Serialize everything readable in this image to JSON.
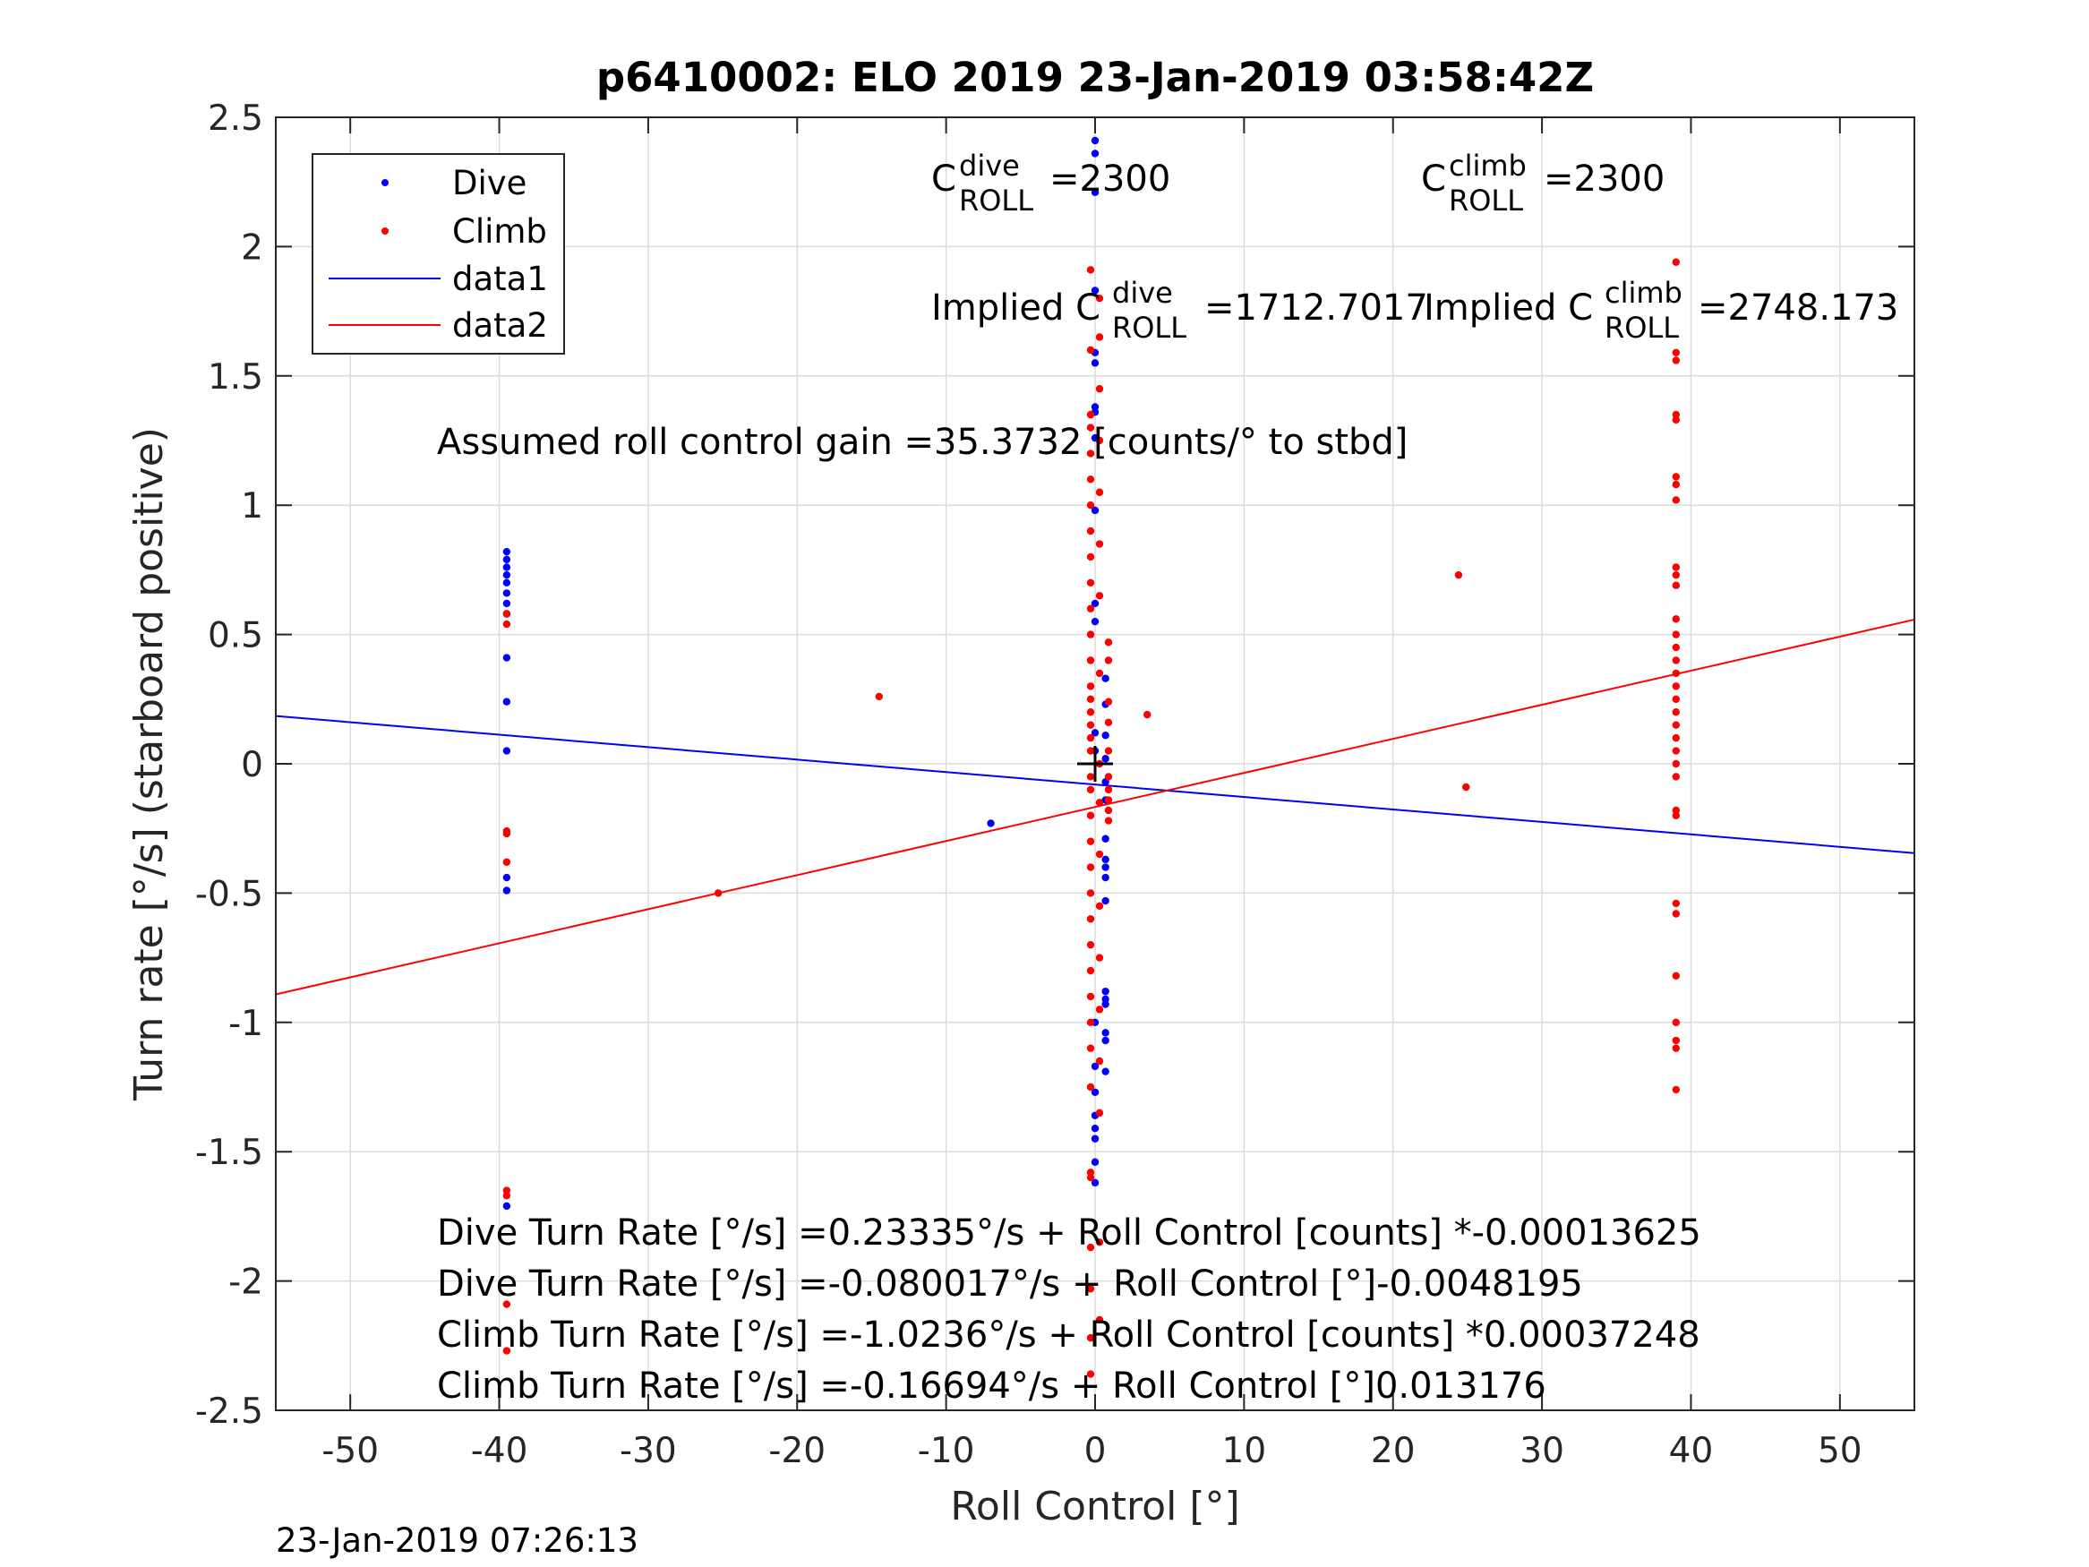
{
  "chart_data": {
    "type": "scatter",
    "title": "p6410002: ELO 2019 23-Jan-2019 03:58:42Z",
    "xlabel": "Roll Control [°]",
    "ylabel": "Turn rate [°/s] (starboard positive)",
    "xlim": [
      -55,
      55
    ],
    "ylim": [
      -2.5,
      2.5
    ],
    "grid": true,
    "legend_placement": "top-left",
    "x_ticks": [
      -50,
      -40,
      -30,
      -20,
      -10,
      0,
      10,
      20,
      30,
      40,
      50
    ],
    "x_tick_labels": [
      "-50",
      "-40",
      "-30",
      "-20",
      "-10",
      "0",
      "10",
      "20",
      "30",
      "40",
      "50"
    ],
    "y_ticks": [
      2.5,
      2,
      1.5,
      1,
      0.5,
      0,
      -0.5,
      -1,
      -1.5,
      -2,
      -2.5
    ],
    "y_tick_labels": [
      "2.5",
      "2",
      "1.5",
      "1",
      "0.5",
      "0",
      "-0.5",
      "-1",
      "-1.5",
      "-2",
      "-2.5"
    ],
    "legend": [
      "Dive",
      "Climb",
      "data1",
      "data2"
    ],
    "series": [
      {
        "name": "Dive",
        "kind": "points",
        "color": "#0000ff",
        "points": [
          [
            -39.5,
            0.82
          ],
          [
            -39.5,
            0.79
          ],
          [
            -39.5,
            0.76
          ],
          [
            -39.5,
            0.73
          ],
          [
            -39.5,
            0.7
          ],
          [
            -39.5,
            0.66
          ],
          [
            -39.5,
            0.62
          ],
          [
            -39.5,
            0.58
          ],
          [
            -39.5,
            0.41
          ],
          [
            -39.5,
            0.24
          ],
          [
            -39.5,
            0.05
          ],
          [
            -39.5,
            -0.44
          ],
          [
            -39.5,
            -0.49
          ],
          [
            -39.5,
            -1.71
          ],
          [
            -7,
            -0.23
          ],
          [
            0,
            2.41
          ],
          [
            0,
            2.36
          ],
          [
            0,
            2.21
          ],
          [
            0,
            1.83
          ],
          [
            0,
            1.59
          ],
          [
            0,
            1.55
          ],
          [
            0,
            1.38
          ],
          [
            0,
            1.36
          ],
          [
            0,
            1.26
          ],
          [
            0,
            0.98
          ],
          [
            0,
            0.62
          ],
          [
            0,
            0.55
          ],
          [
            0,
            0.12
          ],
          [
            0,
            0.05
          ],
          [
            0,
            -1.0
          ],
          [
            0,
            -1.17
          ],
          [
            0,
            -1.27
          ],
          [
            0,
            -1.36
          ],
          [
            0,
            -1.41
          ],
          [
            0,
            -1.45
          ],
          [
            0,
            -1.54
          ],
          [
            0,
            -1.62
          ],
          [
            0.7,
            0.33
          ],
          [
            0.7,
            0.23
          ],
          [
            0.7,
            0.11
          ],
          [
            0.7,
            0.02
          ],
          [
            0.7,
            -0.07
          ],
          [
            0.7,
            -0.14
          ],
          [
            0.7,
            -0.29
          ],
          [
            0.7,
            -0.37
          ],
          [
            0.7,
            -0.4
          ],
          [
            0.7,
            -0.44
          ],
          [
            0.7,
            -0.53
          ],
          [
            0.7,
            -0.88
          ],
          [
            0.7,
            -0.91
          ],
          [
            0.7,
            -0.93
          ],
          [
            0.7,
            -1.04
          ],
          [
            0.7,
            -1.07
          ],
          [
            0.7,
            -1.19
          ]
        ]
      },
      {
        "name": "Climb",
        "kind": "points",
        "color": "#ff0000",
        "points": [
          [
            -39.5,
            0.58
          ],
          [
            -39.5,
            0.54
          ],
          [
            -39.5,
            -0.26
          ],
          [
            -39.5,
            -0.27
          ],
          [
            -39.5,
            -0.38
          ],
          [
            -39.5,
            -1.65
          ],
          [
            -39.5,
            -1.67
          ],
          [
            -39.5,
            -2.09
          ],
          [
            -39.5,
            -2.27
          ],
          [
            -25.3,
            -0.5
          ],
          [
            -14.5,
            0.26
          ],
          [
            3.5,
            0.19
          ],
          [
            24.4,
            0.73
          ],
          [
            24.9,
            -0.09
          ],
          [
            -0.3,
            1.91
          ],
          [
            -0.3,
            1.6
          ],
          [
            -0.3,
            1.35
          ],
          [
            -0.3,
            1.3
          ],
          [
            -0.3,
            1.2
          ],
          [
            -0.3,
            1.1
          ],
          [
            -0.3,
            1.0
          ],
          [
            -0.3,
            0.9
          ],
          [
            -0.3,
            0.8
          ],
          [
            -0.3,
            0.7
          ],
          [
            -0.3,
            0.6
          ],
          [
            -0.3,
            0.5
          ],
          [
            -0.3,
            0.4
          ],
          [
            -0.3,
            0.3
          ],
          [
            -0.3,
            0.25
          ],
          [
            -0.3,
            0.2
          ],
          [
            -0.3,
            0.15
          ],
          [
            -0.3,
            0.1
          ],
          [
            -0.3,
            0.05
          ],
          [
            -0.3,
            -0.05
          ],
          [
            -0.3,
            -0.1
          ],
          [
            -0.3,
            -0.2
          ],
          [
            -0.3,
            -0.3
          ],
          [
            -0.3,
            -0.4
          ],
          [
            -0.3,
            -0.5
          ],
          [
            -0.3,
            -0.6
          ],
          [
            -0.3,
            -0.7
          ],
          [
            -0.3,
            -0.8
          ],
          [
            -0.3,
            -0.9
          ],
          [
            -0.3,
            -1.0
          ],
          [
            -0.3,
            -1.1
          ],
          [
            -0.3,
            -1.25
          ],
          [
            -0.3,
            -1.58
          ],
          [
            -0.3,
            -1.6
          ],
          [
            -0.3,
            -1.87
          ],
          [
            -0.3,
            -2.03
          ],
          [
            -0.3,
            -2.22
          ],
          [
            -0.3,
            -2.36
          ],
          [
            0.3,
            1.8
          ],
          [
            0.3,
            1.65
          ],
          [
            0.3,
            1.45
          ],
          [
            0.3,
            1.25
          ],
          [
            0.3,
            1.05
          ],
          [
            0.3,
            0.85
          ],
          [
            0.3,
            0.65
          ],
          [
            0.3,
            0.35
          ],
          [
            0.3,
            0.0
          ],
          [
            0.3,
            -0.15
          ],
          [
            0.3,
            -0.35
          ],
          [
            0.3,
            -0.55
          ],
          [
            0.3,
            -0.75
          ],
          [
            0.3,
            -0.95
          ],
          [
            0.3,
            -1.15
          ],
          [
            0.3,
            -1.35
          ],
          [
            0.3,
            -1.85
          ],
          [
            0.3,
            -2.15
          ],
          [
            0.9,
            0.47
          ],
          [
            0.9,
            0.4
          ],
          [
            0.9,
            0.24
          ],
          [
            0.9,
            0.16
          ],
          [
            0.9,
            0.05
          ],
          [
            0.9,
            -0.05
          ],
          [
            0.9,
            -0.1
          ],
          [
            0.9,
            -0.14
          ],
          [
            0.9,
            -0.18
          ],
          [
            0.9,
            -0.22
          ],
          [
            39,
            1.94
          ],
          [
            39,
            1.59
          ],
          [
            39,
            1.56
          ],
          [
            39,
            1.35
          ],
          [
            39,
            1.33
          ],
          [
            39,
            1.11
          ],
          [
            39,
            1.08
          ],
          [
            39,
            1.02
          ],
          [
            39,
            0.76
          ],
          [
            39,
            0.73
          ],
          [
            39,
            0.69
          ],
          [
            39,
            0.56
          ],
          [
            39,
            0.5
          ],
          [
            39,
            0.45
          ],
          [
            39,
            0.4
          ],
          [
            39,
            0.35
          ],
          [
            39,
            0.3
          ],
          [
            39,
            0.25
          ],
          [
            39,
            0.2
          ],
          [
            39,
            0.15
          ],
          [
            39,
            0.1
          ],
          [
            39,
            0.05
          ],
          [
            39,
            0.0
          ],
          [
            39,
            -0.05
          ],
          [
            39,
            -0.18
          ],
          [
            39,
            -0.2
          ],
          [
            39,
            -0.54
          ],
          [
            39,
            -0.58
          ],
          [
            39,
            -0.82
          ],
          [
            39,
            -1.0
          ],
          [
            39,
            -1.07
          ],
          [
            39,
            -1.1
          ],
          [
            39,
            -1.26
          ]
        ]
      },
      {
        "name": "data1",
        "kind": "line",
        "color": "#0000ff",
        "x": [
          -55,
          55
        ],
        "y": [
          0.1849,
          -0.3452
        ]
      },
      {
        "name": "data2",
        "kind": "line",
        "color": "#ff0000",
        "x": [
          -55,
          55
        ],
        "y": [
          -0.8916,
          0.5577
        ]
      }
    ],
    "marker": {
      "kind": "plus",
      "x": 0,
      "y": 0,
      "color": "#000000"
    },
    "annotations": {
      "c_dive": {
        "base": "C",
        "sup": "dive",
        "sub": "ROLL",
        "value": "=2300"
      },
      "c_climb": {
        "base": "C",
        "sup": "climb",
        "sub": "ROLL",
        "value": "=2300"
      },
      "implied_dive": {
        "prefix": "Implied C",
        "sup": "dive",
        "sub": "ROLL",
        "value": "=1712.7017"
      },
      "implied_climb": {
        "prefix": "Implied C",
        "sup": "climb",
        "sub": "ROLL",
        "value": "=2748.173"
      },
      "gain": "Assumed roll control gain =35.3732 [counts/° to stbd]",
      "fits": [
        "Dive Turn Rate [°/s] =0.23335°/s + Roll Control [counts] *-0.00013625",
        "Dive Turn Rate [°/s] =-0.080017°/s + Roll Control [°]-0.0048195",
        "Climb Turn Rate [°/s] =-1.0236°/s + Roll Control [counts] *0.00037248",
        "Climb Turn Rate [°/s] =-0.16694°/s + Roll Control [°]0.013176"
      ]
    },
    "timestamp": "23-Jan-2019 07:26:13"
  }
}
